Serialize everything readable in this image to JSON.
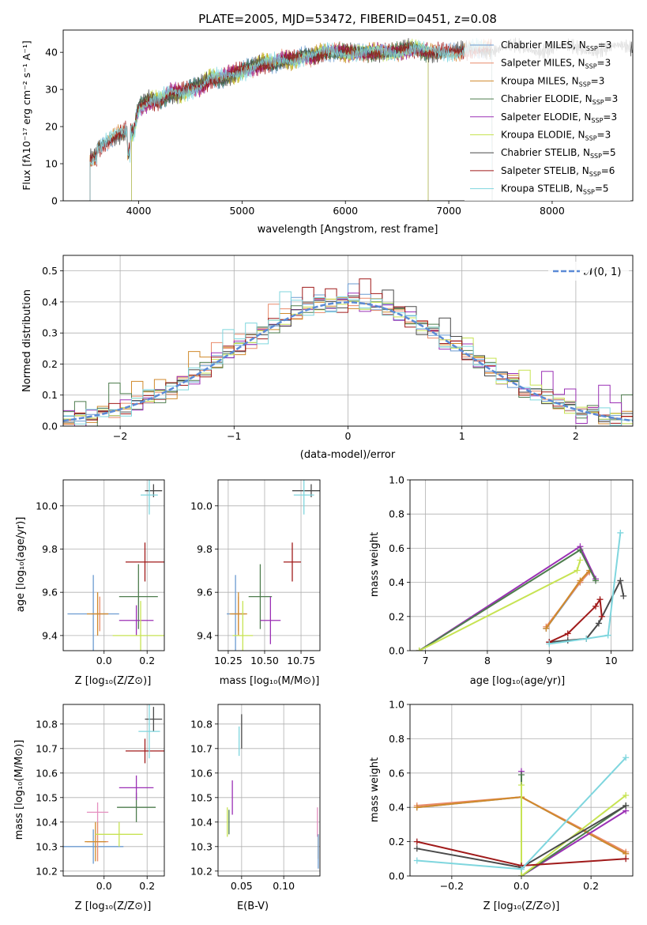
{
  "chart_data": [
    {
      "id": "spectrum",
      "type": "line",
      "title": "PLATE=2005, MJD=53472, FIBERID=0451, z=0.08",
      "xlabel": "wavelength [Angstrom, rest frame]",
      "ylabel": "Flux [fλ10⁻¹⁷ erg cm⁻² s⁻¹ A⁻¹]",
      "xlim": [
        3270,
        8780
      ],
      "ylim": [
        0,
        46
      ],
      "xticks": [
        4000,
        5000,
        6000,
        7000,
        8000
      ],
      "yticks": [
        0,
        10,
        20,
        30,
        40
      ],
      "legend_position": "upper right",
      "spectrum_trend": {
        "x": [
          3530,
          3600,
          3700,
          3800,
          3900,
          3950,
          4000,
          4100,
          4200,
          4300,
          4400,
          4500,
          4600,
          4700,
          4800,
          4900,
          5000,
          5100,
          5200,
          5300,
          5400,
          5500,
          5600,
          5700,
          5800,
          5900,
          6000,
          6100,
          6200,
          6300,
          6400,
          6500,
          6600,
          6700,
          6800,
          6900,
          7000,
          7100,
          7200,
          7300,
          7400
        ],
        "y": [
          13,
          14,
          16,
          18,
          19,
          18,
          25,
          27,
          27,
          29,
          29,
          30,
          31,
          33,
          33,
          34,
          35,
          36,
          37,
          37,
          38,
          38,
          39,
          39,
          40,
          40,
          40,
          40,
          40,
          40,
          40,
          40,
          41,
          41,
          40,
          40,
          40,
          40,
          41,
          41,
          41
        ]
      },
      "series": [
        {
          "name": "Chabrier MILES, N_SSP=3",
          "label_main": "Chabrier MILES, N",
          "label_sub": "SSP",
          "label_tail": "=3",
          "color": "#6b9bd1",
          "x_start": 3530,
          "x_end": 7420
        },
        {
          "name": "Salpeter MILES, N_SSP=3",
          "label_main": "Salpeter MILES, N",
          "label_sub": "SSP",
          "label_tail": "=3",
          "color": "#e98a6a",
          "x_start": 3530,
          "x_end": 7420
        },
        {
          "name": "Kroupa MILES, N_SSP=3",
          "label_main": "Kroupa MILES, N",
          "label_sub": "SSP",
          "label_tail": "=3",
          "color": "#d08a2c",
          "x_start": 3530,
          "x_end": 7420
        },
        {
          "name": "Chabrier ELODIE, N_SSP=3",
          "label_main": "Chabrier ELODIE, N",
          "label_sub": "SSP",
          "label_tail": "=3",
          "color": "#4e7d4e",
          "x_start": 3930,
          "x_end": 6800
        },
        {
          "name": "Salpeter ELODIE, N_SSP=3",
          "label_main": "Salpeter ELODIE, N",
          "label_sub": "SSP",
          "label_tail": "=3",
          "color": "#9b30b5",
          "x_start": 3930,
          "x_end": 6800
        },
        {
          "name": "Kroupa ELODIE, N_SSP=3",
          "label_main": "Kroupa ELODIE, N",
          "label_sub": "SSP",
          "label_tail": "=3",
          "color": "#c7e353",
          "x_start": 3930,
          "x_end": 6800
        },
        {
          "name": "Chabrier STELIB, N_SSP=5",
          "label_main": "Chabrier STELIB, N",
          "label_sub": "SSP",
          "label_tail": "=5",
          "color": "#4a4a4a",
          "x_start": 3530,
          "x_end": 8780
        },
        {
          "name": "Salpeter STELIB, N_SSP=6",
          "label_main": "Salpeter STELIB, N",
          "label_sub": "SSP",
          "label_tail": "=6",
          "color": "#a01a1a",
          "x_start": 3530,
          "x_end": 7420
        },
        {
          "name": "Kroupa STELIB, N_SSP=5",
          "label_main": "Kroupa STELIB, N",
          "label_sub": "SSP",
          "label_tail": "=5",
          "color": "#7fd6de",
          "x_start": 3530,
          "x_end": 7420
        }
      ]
    },
    {
      "id": "residuals",
      "type": "histogram",
      "xlabel": "(data-model)/error",
      "ylabel": "Normed distribution",
      "xlim": [
        -2.5,
        2.5
      ],
      "ylim": [
        0,
        0.55
      ],
      "xticks": [
        -2,
        -1,
        0,
        1,
        2
      ],
      "yticks": [
        0.0,
        0.1,
        0.2,
        0.3,
        0.4,
        0.5
      ],
      "grid": true,
      "legend_position": "upper right",
      "reference_curve": {
        "name": "N(0,1)",
        "label": "𝒩(0, 1)",
        "mean": 0,
        "sigma": 1,
        "color": "#5b8ad6"
      },
      "bin_width": 0.1,
      "bin_start": -2.5,
      "bin_jitter": [
        0.02,
        -0.015,
        0.01,
        0.03,
        -0.025,
        0.0,
        0.015,
        -0.02,
        0.025,
        -0.01,
        0.005,
        -0.03,
        0.02,
        0.035,
        -0.015,
        0.01,
        -0.025,
        0.03,
        0.0,
        -0.005,
        0.09,
        0.03,
        0.06,
        -0.04,
        0.02,
        0.1,
        0.05,
        -0.02,
        0.03,
        -0.03,
        0.02,
        0.01,
        -0.015,
        0.025,
        -0.02,
        0.005,
        0.015,
        -0.01,
        0.02,
        -0.025,
        0.0,
        0.03,
        -0.01,
        0.02,
        -0.015,
        0.01,
        0.005,
        -0.02,
        0.015,
        0.0
      ],
      "series_colors": [
        "#6b9bd1",
        "#e98a6a",
        "#d08a2c",
        "#4e7d4e",
        "#9b30b5",
        "#c7e353",
        "#4a4a4a",
        "#a01a1a",
        "#7fd6de"
      ]
    },
    {
      "id": "age_vs_Z",
      "type": "errorbar",
      "xlabel": "Z [log₁₀(Z/Z⊙)]",
      "ylabel": "age  [log₁₀(age/yr)]",
      "xlim": [
        -0.19,
        0.28
      ],
      "ylim": [
        9.33,
        10.12
      ],
      "xticks": [
        0.0,
        0.2
      ],
      "yticks": [
        9.4,
        9.6,
        9.8,
        10.0
      ],
      "grid": true,
      "points": [
        {
          "color": "#6b9bd1",
          "x": -0.05,
          "y": 9.5,
          "xerr": 0.12,
          "yerr": 0.18
        },
        {
          "color": "#e98a6a",
          "x": -0.02,
          "y": 9.5,
          "xerr": 0.04,
          "yerr": 0.08
        },
        {
          "color": "#d08a2c",
          "x": -0.03,
          "y": 9.5,
          "xerr": 0.05,
          "yerr": 0.1
        },
        {
          "color": "#4e7d4e",
          "x": 0.16,
          "y": 9.58,
          "xerr": 0.09,
          "yerr": 0.15
        },
        {
          "color": "#9b30b5",
          "x": 0.15,
          "y": 9.47,
          "xerr": 0.08,
          "yerr": 0.07
        },
        {
          "color": "#c7e353",
          "x": 0.17,
          "y": 9.4,
          "xerr": 0.13,
          "yerr": 0.16
        },
        {
          "color": "#4a4a4a",
          "x": 0.23,
          "y": 10.07,
          "xerr": 0.04,
          "yerr": 0.03
        },
        {
          "color": "#a01a1a",
          "x": 0.19,
          "y": 9.74,
          "xerr": 0.09,
          "yerr": 0.09
        },
        {
          "color": "#7fd6de",
          "x": 0.21,
          "y": 10.05,
          "xerr": 0.04,
          "yerr": 0.09
        }
      ]
    },
    {
      "id": "age_vs_mass",
      "type": "errorbar",
      "xlabel": "mass [log₁₀(M/M⊙)]",
      "ylabel": "",
      "xlim": [
        10.18,
        10.88
      ],
      "ylim": [
        9.33,
        10.12
      ],
      "xticks": [
        10.25,
        10.5,
        10.75
      ],
      "yticks": [
        9.4,
        9.6,
        9.8,
        10.0
      ],
      "grid": true,
      "points": [
        {
          "color": "#6b9bd1",
          "x": 10.3,
          "y": 9.5,
          "xerr": 0.06,
          "yerr": 0.18
        },
        {
          "color": "#e98a6a",
          "x": 10.32,
          "y": 9.5,
          "xerr": 0.05,
          "yerr": 0.08
        },
        {
          "color": "#d08a2c",
          "x": 10.32,
          "y": 9.5,
          "xerr": 0.06,
          "yerr": 0.1
        },
        {
          "color": "#4e7d4e",
          "x": 10.47,
          "y": 9.58,
          "xerr": 0.08,
          "yerr": 0.15
        },
        {
          "color": "#9b30b5",
          "x": 10.54,
          "y": 9.47,
          "xerr": 0.07,
          "yerr": 0.11
        },
        {
          "color": "#c7e353",
          "x": 10.35,
          "y": 9.4,
          "xerr": 0.07,
          "yerr": 0.16
        },
        {
          "color": "#4a4a4a",
          "x": 10.82,
          "y": 10.07,
          "xerr": 0.13,
          "yerr": 0.03
        },
        {
          "color": "#a01a1a",
          "x": 10.69,
          "y": 9.74,
          "xerr": 0.06,
          "yerr": 0.09
        },
        {
          "color": "#7fd6de",
          "x": 10.77,
          "y": 10.05,
          "xerr": 0.07,
          "yerr": 0.09
        }
      ]
    },
    {
      "id": "weight_vs_age",
      "type": "line",
      "xlabel": "age  [log₁₀(age/yr)]",
      "ylabel": "mass weight",
      "xlim": [
        6.75,
        10.35
      ],
      "ylim": [
        0,
        1.0
      ],
      "xticks": [
        7,
        8,
        9,
        10
      ],
      "yticks": [
        0.0,
        0.2,
        0.4,
        0.6,
        0.8,
        1.0
      ],
      "grid": true,
      "series": [
        {
          "color": "#6b9bd1",
          "x": [
            8.95,
            9.5,
            9.65
          ],
          "y": [
            0.13,
            0.4,
            0.46
          ]
        },
        {
          "color": "#e98a6a",
          "x": [
            8.95,
            9.5,
            9.65
          ],
          "y": [
            0.14,
            0.4,
            0.46
          ]
        },
        {
          "color": "#d08a2c",
          "x": [
            8.95,
            9.5,
            9.65
          ],
          "y": [
            0.13,
            0.41,
            0.47
          ]
        },
        {
          "color": "#9b30b5",
          "x": [
            6.9,
            9.5,
            9.75
          ],
          "y": [
            0.0,
            0.61,
            0.42
          ]
        },
        {
          "color": "#4e7d4e",
          "x": [
            6.9,
            9.5,
            9.75
          ],
          "y": [
            0.0,
            0.59,
            0.41
          ]
        },
        {
          "color": "#c7e353",
          "x": [
            6.9,
            9.45,
            9.5
          ],
          "y": [
            0.0,
            0.47,
            0.53
          ]
        },
        {
          "color": "#4a4a4a",
          "x": [
            9.0,
            9.3,
            9.6,
            9.8,
            10.15,
            10.2
          ],
          "y": [
            0.05,
            0.06,
            0.07,
            0.16,
            0.41,
            0.32
          ]
        },
        {
          "color": "#a01a1a",
          "x": [
            9.0,
            9.3,
            9.75,
            9.82,
            9.85
          ],
          "y": [
            0.05,
            0.1,
            0.26,
            0.3,
            0.2
          ]
        },
        {
          "color": "#7fd6de",
          "x": [
            9.0,
            9.6,
            9.95,
            10.15
          ],
          "y": [
            0.04,
            0.07,
            0.09,
            0.69
          ]
        }
      ]
    },
    {
      "id": "mass_vs_Z",
      "type": "errorbar",
      "xlabel": "Z [log₁₀(Z/Z⊙)]",
      "ylabel": "mass [log₁₀(M/M⊙)]",
      "xlim": [
        -0.19,
        0.28
      ],
      "ylim": [
        10.18,
        10.88
      ],
      "xticks": [
        0.0,
        0.2
      ],
      "yticks": [
        10.2,
        10.3,
        10.4,
        10.5,
        10.6,
        10.7,
        10.8
      ],
      "grid": true,
      "points": [
        {
          "color": "#6b9bd1",
          "x": -0.05,
          "y": 10.3,
          "xerr": 0.14,
          "yerr": 0.07
        },
        {
          "color": "#e98a6a",
          "x": -0.03,
          "y": 10.32,
          "xerr": 0.05,
          "yerr": 0.08
        },
        {
          "color": "#d08a2c",
          "x": -0.04,
          "y": 10.32,
          "xerr": 0.05,
          "yerr": 0.08
        },
        {
          "color": "#e58fc0",
          "x": -0.03,
          "y": 10.44,
          "xerr": 0.05,
          "yerr": 0.04
        },
        {
          "color": "#4e7d4e",
          "x": 0.15,
          "y": 10.46,
          "xerr": 0.09,
          "yerr": 0.06
        },
        {
          "color": "#9b30b5",
          "x": 0.15,
          "y": 10.54,
          "xerr": 0.08,
          "yerr": 0.05
        },
        {
          "color": "#c7e353",
          "x": 0.07,
          "y": 10.35,
          "xerr": 0.11,
          "yerr": 0.05
        },
        {
          "color": "#4a4a4a",
          "x": 0.23,
          "y": 10.82,
          "xerr": 0.04,
          "yerr": 0.05
        },
        {
          "color": "#a01a1a",
          "x": 0.19,
          "y": 10.69,
          "xerr": 0.09,
          "yerr": 0.05
        },
        {
          "color": "#7fd6de",
          "x": 0.21,
          "y": 10.77,
          "xerr": 0.05,
          "yerr": 0.11
        }
      ]
    },
    {
      "id": "mass_vs_ebv",
      "type": "errorbar",
      "xlabel": "E(B-V)",
      "ylabel": "",
      "xlim": [
        0.022,
        0.143
      ],
      "ylim": [
        10.18,
        10.88
      ],
      "xticks": [
        0.05,
        0.1
      ],
      "yticks": [
        10.2,
        10.3,
        10.4,
        10.5,
        10.6,
        10.7,
        10.8
      ],
      "grid": true,
      "points": [
        {
          "color": "#c7e353",
          "x": 0.033,
          "y": 10.4,
          "xerr": 0,
          "yerr": 0.06
        },
        {
          "color": "#4e7d4e",
          "x": 0.035,
          "y": 10.4,
          "xerr": 0,
          "yerr": 0.05
        },
        {
          "color": "#9b30b5",
          "x": 0.039,
          "y": 10.5,
          "xerr": 0,
          "yerr": 0.07
        },
        {
          "color": "#7fd6de",
          "x": 0.047,
          "y": 10.73,
          "xerr": 0,
          "yerr": 0.06
        },
        {
          "color": "#4a4a4a",
          "x": 0.05,
          "y": 10.77,
          "xerr": 0,
          "yerr": 0.07
        },
        {
          "color": "#e58fc0",
          "x": 0.14,
          "y": 10.4,
          "xerr": 0,
          "yerr": 0.06
        },
        {
          "color": "#d08a2c",
          "x": 0.141,
          "y": 10.3,
          "xerr": 0,
          "yerr": 0.05
        },
        {
          "color": "#6b9bd1",
          "x": 0.141,
          "y": 10.28,
          "xerr": 0,
          "yerr": 0.07
        }
      ]
    },
    {
      "id": "weight_vs_Z",
      "type": "line",
      "xlabel": "Z [log₁₀(Z/Z⊙)]",
      "ylabel": "mass weight",
      "xlim": [
        -0.32,
        0.32
      ],
      "ylim": [
        0,
        1.0
      ],
      "xticks": [
        -0.2,
        0.0,
        0.2
      ],
      "yticks": [
        0.0,
        0.2,
        0.4,
        0.6,
        0.8,
        1.0
      ],
      "grid": true,
      "series": [
        {
          "color": "#6b9bd1",
          "x": [
            -0.3,
            0.0,
            0.3
          ],
          "y": [
            0.4,
            0.46,
            0.13
          ]
        },
        {
          "color": "#e98a6a",
          "x": [
            -0.3,
            0.0,
            0.3
          ],
          "y": [
            0.41,
            0.46,
            0.14
          ]
        },
        {
          "color": "#d08a2c",
          "x": [
            -0.3,
            0.0,
            0.3
          ],
          "y": [
            0.4,
            0.46,
            0.13
          ]
        },
        {
          "color": "#9b30b5",
          "x": [
            0.0,
            0.0,
            0.3
          ],
          "y": [
            0.61,
            0.0,
            0.38
          ]
        },
        {
          "color": "#4e7d4e",
          "x": [
            0.0,
            0.0,
            0.3
          ],
          "y": [
            0.59,
            0.0,
            0.41
          ]
        },
        {
          "color": "#c7e353",
          "x": [
            0.0,
            0.0,
            0.3
          ],
          "y": [
            0.53,
            0.0,
            0.47
          ]
        },
        {
          "color": "#4a4a4a",
          "x": [
            -0.3,
            0.0,
            0.3
          ],
          "y": [
            0.16,
            0.05,
            0.41
          ]
        },
        {
          "color": "#a01a1a",
          "x": [
            -0.3,
            0.0,
            0.3
          ],
          "y": [
            0.2,
            0.06,
            0.1
          ]
        },
        {
          "color": "#7fd6de",
          "x": [
            -0.3,
            0.0,
            0.3
          ],
          "y": [
            0.09,
            0.04,
            0.69
          ]
        }
      ]
    }
  ]
}
